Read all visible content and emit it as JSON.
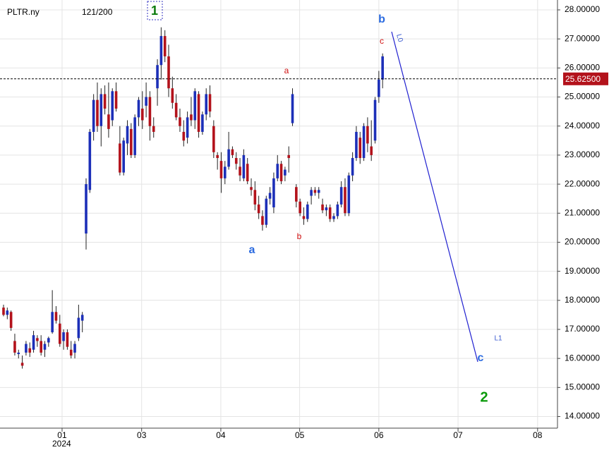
{
  "chart_data": {
    "type": "candlestick",
    "symbol": "PLTR.ny",
    "counter": "121/200",
    "year_label": "2024",
    "up_color": "#1c2fb8",
    "down_color": "#b3121b",
    "grid": true,
    "x": [
      0,
      1,
      2,
      3,
      4,
      5,
      6,
      7,
      8,
      9,
      10,
      11,
      12,
      13,
      14,
      15,
      16,
      17,
      18,
      19,
      20,
      21,
      22,
      23,
      24,
      25,
      26,
      27,
      28,
      29,
      30,
      31,
      32,
      33,
      34,
      35,
      36,
      37,
      38,
      39,
      40,
      41,
      42,
      43,
      44,
      45,
      46,
      47,
      48,
      49,
      50,
      51,
      52,
      53,
      54,
      55,
      56,
      57,
      58,
      59,
      60,
      61,
      62,
      63,
      64,
      65,
      66,
      67,
      68,
      69,
      70,
      71,
      72,
      73,
      74,
      75,
      76,
      77,
      78,
      79,
      80,
      81,
      82,
      83,
      84,
      85,
      86,
      87,
      88,
      89,
      90,
      91,
      92,
      93,
      94,
      95,
      96,
      97,
      98,
      99,
      100,
      101
    ],
    "ohlc": [
      [
        17.75,
        17.85,
        17.45,
        17.5
      ],
      [
        17.5,
        17.75,
        17.35,
        17.65
      ],
      [
        17.6,
        17.65,
        16.95,
        17.05
      ],
      [
        16.6,
        16.85,
        16.1,
        16.2
      ],
      [
        16.15,
        16.3,
        16.0,
        16.2
      ],
      [
        15.85,
        16.1,
        15.65,
        15.75
      ],
      [
        16.2,
        16.6,
        16.1,
        16.5
      ],
      [
        16.35,
        16.55,
        16.05,
        16.2
      ],
      [
        16.3,
        16.95,
        16.2,
        16.8
      ],
      [
        16.7,
        16.8,
        16.4,
        16.6
      ],
      [
        16.6,
        16.8,
        16.1,
        16.2
      ],
      [
        16.3,
        16.6,
        16.05,
        16.5
      ],
      [
        16.55,
        16.75,
        16.4,
        16.7
      ],
      [
        16.9,
        18.35,
        16.85,
        17.6
      ],
      [
        17.6,
        17.8,
        17.2,
        17.3
      ],
      [
        17.2,
        17.5,
        16.4,
        16.5
      ],
      [
        16.6,
        17.0,
        16.3,
        16.9
      ],
      [
        16.9,
        17.0,
        16.3,
        16.4
      ],
      [
        16.3,
        16.6,
        16.0,
        16.1
      ],
      [
        16.2,
        16.6,
        16.0,
        16.5
      ],
      [
        16.7,
        17.85,
        16.6,
        17.4
      ],
      [
        17.3,
        17.6,
        16.9,
        17.5
      ],
      [
        20.3,
        22.2,
        19.75,
        22.0
      ],
      [
        21.8,
        23.9,
        21.7,
        23.8
      ],
      [
        23.8,
        25.1,
        23.5,
        24.9
      ],
      [
        24.9,
        25.5,
        23.8,
        24.0
      ],
      [
        24.0,
        25.3,
        23.3,
        25.1
      ],
      [
        25.1,
        25.4,
        24.4,
        24.6
      ],
      [
        24.4,
        25.5,
        23.6,
        23.9
      ],
      [
        24.2,
        25.3,
        24.0,
        25.2
      ],
      [
        25.2,
        25.5,
        24.5,
        24.6
      ],
      [
        23.4,
        24.0,
        22.3,
        22.4
      ],
      [
        22.4,
        23.6,
        22.3,
        23.5
      ],
      [
        23.4,
        24.2,
        23.0,
        24.0
      ],
      [
        23.9,
        24.1,
        22.9,
        23.0
      ],
      [
        23.0,
        24.4,
        22.9,
        24.3
      ],
      [
        24.3,
        25.0,
        24.0,
        24.9
      ],
      [
        24.6,
        25.2,
        23.9,
        24.2
      ],
      [
        24.7,
        25.5,
        24.3,
        25.0
      ],
      [
        25.0,
        25.2,
        23.5,
        24.0
      ],
      [
        24.0,
        24.3,
        23.6,
        23.8
      ],
      [
        25.3,
        26.3,
        24.7,
        26.1
      ],
      [
        26.1,
        27.4,
        25.6,
        27.1
      ],
      [
        27.1,
        27.3,
        26.2,
        26.4
      ],
      [
        26.4,
        26.8,
        25.0,
        25.3
      ],
      [
        25.3,
        25.7,
        24.6,
        24.8
      ],
      [
        24.8,
        25.1,
        24.2,
        24.3
      ],
      [
        24.3,
        24.6,
        23.8,
        24.0
      ],
      [
        23.8,
        24.2,
        23.3,
        23.5
      ],
      [
        23.6,
        24.5,
        23.4,
        24.3
      ],
      [
        24.4,
        25.0,
        24.0,
        24.2
      ],
      [
        24.2,
        25.3,
        23.9,
        25.2
      ],
      [
        25.1,
        25.2,
        23.6,
        23.8
      ],
      [
        23.8,
        24.5,
        23.7,
        24.4
      ],
      [
        24.4,
        25.3,
        24.2,
        25.1
      ],
      [
        25.1,
        25.4,
        24.3,
        24.5
      ],
      [
        24.0,
        24.2,
        22.9,
        23.1
      ],
      [
        23.0,
        23.1,
        22.5,
        22.9
      ],
      [
        22.8,
        23.1,
        21.7,
        22.2
      ],
      [
        22.2,
        22.8,
        22.0,
        22.6
      ],
      [
        22.6,
        23.8,
        22.5,
        23.2
      ],
      [
        23.2,
        23.3,
        22.9,
        23.0
      ],
      [
        22.9,
        23.1,
        22.5,
        22.7
      ],
      [
        22.6,
        22.9,
        22.1,
        22.3
      ],
      [
        22.2,
        23.2,
        22.1,
        23.0
      ],
      [
        22.7,
        22.9,
        22.0,
        22.1
      ],
      [
        21.9,
        22.2,
        21.6,
        21.8
      ],
      [
        21.8,
        22.1,
        21.1,
        21.3
      ],
      [
        21.3,
        21.6,
        20.8,
        21.0
      ],
      [
        20.9,
        21.1,
        20.4,
        20.6
      ],
      [
        20.6,
        21.6,
        20.5,
        21.5
      ],
      [
        21.5,
        21.9,
        21.3,
        21.7
      ],
      [
        21.2,
        22.4,
        21.0,
        22.2
      ],
      [
        22.2,
        23.0,
        22.1,
        22.7
      ],
      [
        22.7,
        22.8,
        22.0,
        22.1
      ],
      [
        22.3,
        22.6,
        22.1,
        22.5
      ],
      [
        23.0,
        23.3,
        22.4,
        22.9
      ],
      [
        24.1,
        25.3,
        24.0,
        25.1
      ],
      [
        21.9,
        22.0,
        21.2,
        21.4
      ],
      [
        21.4,
        21.5,
        20.9,
        21.0
      ],
      [
        20.9,
        21.2,
        20.6,
        20.8
      ],
      [
        20.8,
        21.4,
        20.7,
        21.3
      ],
      [
        21.6,
        21.9,
        21.3,
        21.8
      ],
      [
        21.8,
        21.9,
        21.6,
        21.7
      ],
      [
        21.7,
        21.9,
        21.5,
        21.8
      ],
      [
        21.3,
        21.5,
        21.0,
        21.1
      ],
      [
        21.1,
        21.3,
        20.9,
        21.2
      ],
      [
        21.2,
        21.3,
        20.7,
        20.8
      ],
      [
        20.8,
        21.0,
        20.7,
        20.9
      ],
      [
        20.9,
        21.4,
        20.8,
        21.3
      ],
      [
        21.3,
        22.1,
        21.2,
        21.9
      ],
      [
        21.9,
        22.2,
        20.9,
        21.0
      ],
      [
        21.0,
        22.4,
        20.9,
        22.3
      ],
      [
        22.3,
        23.1,
        22.1,
        22.9
      ],
      [
        22.9,
        24.0,
        22.8,
        23.8
      ],
      [
        23.6,
        23.8,
        22.7,
        22.9
      ],
      [
        22.9,
        24.1,
        22.8,
        24.0
      ],
      [
        24.0,
        24.3,
        23.1,
        23.4
      ],
      [
        23.3,
        24.2,
        22.8,
        23.0
      ],
      [
        23.5,
        25.0,
        23.4,
        24.9
      ],
      [
        25.0,
        25.9,
        24.8,
        25.6
      ],
      [
        25.6,
        26.5,
        25.3,
        26.4
      ]
    ],
    "last_price": {
      "value": 25.625,
      "label": "25.62500"
    },
    "xlim": [
      -0.94,
      147.6
    ],
    "xticks": [
      {
        "value": 15.6,
        "label": "01"
      },
      {
        "value": 36.8,
        "label": "03"
      },
      {
        "value": 57.9,
        "label": "04"
      },
      {
        "value": 78.9,
        "label": "05"
      },
      {
        "value": 100.0,
        "label": "06"
      },
      {
        "value": 121.1,
        "label": "07"
      },
      {
        "value": 142.3,
        "label": "08"
      }
    ],
    "ylim": [
      13.6,
      28.34
    ],
    "yticks": [
      {
        "value": 14,
        "label": "14.00000"
      },
      {
        "value": 15,
        "label": "15.00000"
      },
      {
        "value": 16,
        "label": "16.00000"
      },
      {
        "value": 17,
        "label": "17.00000"
      },
      {
        "value": 18,
        "label": "18.00000"
      },
      {
        "value": 19,
        "label": "19.00000"
      },
      {
        "value": 20,
        "label": "20.00000"
      },
      {
        "value": 21,
        "label": "21.00000"
      },
      {
        "value": 22,
        "label": "22.00000"
      },
      {
        "value": 23,
        "label": "23.00000"
      },
      {
        "value": 24,
        "label": "24.00000"
      },
      {
        "value": 25,
        "label": "25.00000"
      },
      {
        "value": 26,
        "label": "26.00000"
      },
      {
        "value": 27,
        "label": "27.00000"
      },
      {
        "value": 28,
        "label": "28.00000"
      }
    ],
    "annotations": [
      "1",
      "a",
      "b",
      "c",
      "a",
      "b",
      "c",
      "2",
      "L0",
      "L1"
    ]
  }
}
